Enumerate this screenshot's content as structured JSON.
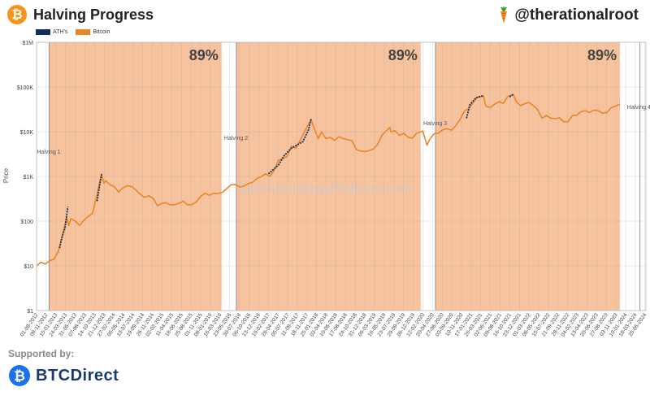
{
  "header": {
    "logo_symbol": "₿",
    "title": "Halving Progress",
    "handle": "@therationalroot",
    "handle_icon": "carrot-icon"
  },
  "footer": {
    "supported_by": "Supported by:",
    "sponsor": "BTCDirect",
    "sponsor_icon": "btcdirect-logo-icon"
  },
  "chart_data": {
    "type": "line",
    "title": "Halving Progress",
    "ylabel": "Price",
    "yscale": "log",
    "ylim": [
      1,
      1000000
    ],
    "xlim": [
      "2012-09-01",
      "2024-06-01"
    ],
    "grid": true,
    "watermark": "BitcoinStrategyPlatform.com",
    "colors": {
      "ath": "#0d2f5a",
      "bitcoin": "#e8862a",
      "band": "#f6b88d"
    },
    "legend": {
      "position": "top-left",
      "entries": [
        "ATH's",
        "Bitcoin"
      ]
    },
    "y_ticks": [
      {
        "value": 1,
        "label": "$1"
      },
      {
        "value": 10,
        "label": "$10"
      },
      {
        "value": 100,
        "label": "$100"
      },
      {
        "value": 1000,
        "label": "$1K"
      },
      {
        "value": 10000,
        "label": "$10K"
      },
      {
        "value": 100000,
        "label": "$100K"
      },
      {
        "value": 1000000,
        "label": "$1M"
      }
    ],
    "x_ticks": [
      "01-09-2012",
      "08-11-2012",
      "15-01-2013",
      "24-03-2013",
      "31-05-2013",
      "07-08-2013",
      "14-10-2013",
      "21-12-2013",
      "27-02-2014",
      "06-05-2014",
      "13-07-2014",
      "19-09-2014",
      "26-11-2014",
      "02-02-2015",
      "11-04-2015",
      "18-06-2015",
      "25-08-2015",
      "01-11-2015",
      "08-01-2016",
      "16-03-2016",
      "23-05-2016",
      "30-07-2016",
      "06-10-2016",
      "13-12-2016",
      "19-02-2017",
      "28-04-2017",
      "05-07-2017",
      "11-09-2017",
      "18-11-2017",
      "25-01-2018",
      "03-04-2018",
      "10-06-2018",
      "17-08-2018",
      "24-10-2018",
      "31-12-2018",
      "09-03-2019",
      "16-05-2019",
      "23-07-2019",
      "29-09-2019",
      "06-12-2019",
      "12-02-2020",
      "20-04-2020",
      "27-06-2020",
      "03-09-2020",
      "10-11-2020",
      "17-01-2021",
      "26-03-2021",
      "02-06-2021",
      "09-08-2021",
      "16-10-2021",
      "23-12-2021",
      "01-03-2022",
      "08-05-2022",
      "15-07-2022",
      "21-09-2022",
      "28-11-2022",
      "04-02-2023",
      "13-04-2023",
      "20-06-2023",
      "27-08-2023",
      "03-11-2023",
      "10-01-2024",
      "18-03-2024",
      "25-05-2024",
      "01-08-2024"
    ],
    "halvings": [
      {
        "label": "Halving 1",
        "date": "2012-11-28"
      },
      {
        "label": "Halving 2",
        "date": "2016-07-09"
      },
      {
        "label": "Halving 3",
        "date": "2020-05-11"
      },
      {
        "label": "Halving 4",
        "date": "2024-04-20"
      }
    ],
    "progress_bands": [
      {
        "start": "2012-11-28",
        "end": "2016-03-27",
        "label": "89%"
      },
      {
        "start": "2016-07-09",
        "end": "2020-01-28",
        "label": "89%"
      },
      {
        "start": "2020-05-11",
        "end": "2023-12-01",
        "label": "89%"
      }
    ],
    "series": [
      {
        "name": "Bitcoin",
        "points": [
          [
            "2012-09-01",
            10
          ],
          [
            "2012-10-01",
            12
          ],
          [
            "2012-11-01",
            11
          ],
          [
            "2012-12-01",
            13
          ],
          [
            "2013-01-01",
            14
          ],
          [
            "2013-02-01",
            21
          ],
          [
            "2013-03-01",
            46
          ],
          [
            "2013-04-01",
            120
          ],
          [
            "2013-04-15",
            80
          ],
          [
            "2013-05-01",
            115
          ],
          [
            "2013-06-01",
            100
          ],
          [
            "2013-07-01",
            80
          ],
          [
            "2013-08-01",
            105
          ],
          [
            "2013-09-01",
            128
          ],
          [
            "2013-10-01",
            150
          ],
          [
            "2013-11-01",
            400
          ],
          [
            "2013-12-01",
            1100
          ],
          [
            "2013-12-20",
            700
          ],
          [
            "2014-01-01",
            800
          ],
          [
            "2014-02-01",
            650
          ],
          [
            "2014-03-01",
            600
          ],
          [
            "2014-04-01",
            450
          ],
          [
            "2014-05-01",
            550
          ],
          [
            "2014-06-01",
            620
          ],
          [
            "2014-07-01",
            600
          ],
          [
            "2014-08-01",
            500
          ],
          [
            "2014-09-01",
            400
          ],
          [
            "2014-10-01",
            340
          ],
          [
            "2014-11-01",
            370
          ],
          [
            "2014-12-01",
            320
          ],
          [
            "2015-01-01",
            220
          ],
          [
            "2015-02-01",
            250
          ],
          [
            "2015-03-01",
            260
          ],
          [
            "2015-04-01",
            230
          ],
          [
            "2015-05-01",
            235
          ],
          [
            "2015-06-01",
            250
          ],
          [
            "2015-07-01",
            280
          ],
          [
            "2015-08-01",
            230
          ],
          [
            "2015-09-01",
            235
          ],
          [
            "2015-10-01",
            270
          ],
          [
            "2015-11-01",
            360
          ],
          [
            "2015-12-01",
            420
          ],
          [
            "2016-01-01",
            380
          ],
          [
            "2016-02-01",
            420
          ],
          [
            "2016-03-01",
            415
          ],
          [
            "2016-04-01",
            440
          ],
          [
            "2016-05-01",
            530
          ],
          [
            "2016-06-01",
            650
          ],
          [
            "2016-07-01",
            660
          ],
          [
            "2016-08-01",
            580
          ],
          [
            "2016-09-01",
            610
          ],
          [
            "2016-10-01",
            690
          ],
          [
            "2016-11-01",
            740
          ],
          [
            "2016-12-01",
            900
          ],
          [
            "2017-01-01",
            990
          ],
          [
            "2017-02-01",
            1150
          ],
          [
            "2017-03-01",
            1000
          ],
          [
            "2017-04-01",
            1350
          ],
          [
            "2017-05-01",
            2300
          ],
          [
            "2017-06-01",
            2500
          ],
          [
            "2017-07-01",
            2800
          ],
          [
            "2017-08-01",
            4700
          ],
          [
            "2017-09-01",
            4300
          ],
          [
            "2017-10-01",
            6400
          ],
          [
            "2017-11-01",
            10000
          ],
          [
            "2017-12-17",
            19000
          ],
          [
            "2018-01-01",
            13500
          ],
          [
            "2018-02-06",
            7000
          ],
          [
            "2018-03-01",
            10000
          ],
          [
            "2018-04-01",
            7000
          ],
          [
            "2018-05-01",
            7500
          ],
          [
            "2018-06-01",
            6400
          ],
          [
            "2018-07-01",
            7700
          ],
          [
            "2018-08-01",
            7000
          ],
          [
            "2018-09-01",
            6600
          ],
          [
            "2018-10-01",
            6300
          ],
          [
            "2018-11-01",
            4000
          ],
          [
            "2018-12-01",
            3700
          ],
          [
            "2019-01-01",
            3600
          ],
          [
            "2019-02-01",
            3800
          ],
          [
            "2019-03-01",
            4100
          ],
          [
            "2019-04-01",
            5300
          ],
          [
            "2019-05-01",
            8500
          ],
          [
            "2019-06-26",
            12500
          ],
          [
            "2019-07-01",
            10000
          ],
          [
            "2019-08-01",
            10500
          ],
          [
            "2019-09-01",
            8300
          ],
          [
            "2019-10-01",
            9200
          ],
          [
            "2019-11-01",
            7500
          ],
          [
            "2019-12-01",
            7200
          ],
          [
            "2020-01-01",
            9300
          ],
          [
            "2020-02-12",
            10300
          ],
          [
            "2020-03-12",
            5000
          ],
          [
            "2020-04-01",
            6800
          ],
          [
            "2020-05-01",
            9000
          ],
          [
            "2020-06-01",
            9300
          ],
          [
            "2020-07-01",
            11000
          ],
          [
            "2020-08-01",
            11700
          ],
          [
            "2020-09-01",
            10800
          ],
          [
            "2020-10-01",
            13700
          ],
          [
            "2020-11-01",
            19000
          ],
          [
            "2020-12-01",
            29000
          ],
          [
            "2021-01-01",
            33000
          ],
          [
            "2021-02-01",
            45000
          ],
          [
            "2021-03-01",
            58000
          ],
          [
            "2021-04-14",
            63000
          ],
          [
            "2021-05-01",
            37000
          ],
          [
            "2021-06-01",
            35000
          ],
          [
            "2021-07-01",
            41000
          ],
          [
            "2021-08-01",
            47000
          ],
          [
            "2021-09-01",
            43000
          ],
          [
            "2021-10-01",
            61000
          ],
          [
            "2021-11-10",
            68000
          ],
          [
            "2021-12-01",
            47000
          ],
          [
            "2022-01-01",
            38000
          ],
          [
            "2022-02-01",
            43000
          ],
          [
            "2022-03-01",
            45000
          ],
          [
            "2022-04-01",
            38000
          ],
          [
            "2022-05-01",
            31000
          ],
          [
            "2022-06-01",
            20000
          ],
          [
            "2022-07-01",
            23000
          ],
          [
            "2022-08-01",
            20000
          ],
          [
            "2022-09-01",
            19500
          ],
          [
            "2022-10-01",
            20500
          ],
          [
            "2022-11-01",
            16500
          ],
          [
            "2022-12-01",
            16800
          ],
          [
            "2023-01-01",
            23000
          ],
          [
            "2023-02-01",
            23500
          ],
          [
            "2023-03-01",
            28000
          ],
          [
            "2023-04-01",
            29500
          ],
          [
            "2023-05-01",
            27000
          ],
          [
            "2023-06-01",
            30500
          ],
          [
            "2023-07-01",
            29500
          ],
          [
            "2023-08-01",
            26000
          ],
          [
            "2023-09-01",
            27000
          ],
          [
            "2023-10-01",
            34500
          ],
          [
            "2023-11-01",
            37500
          ],
          [
            "2023-12-01",
            41000
          ]
        ]
      },
      {
        "name": "ATH's",
        "segments": [
          [
            [
              "2013-02-10",
              25
            ],
            [
              "2013-03-01",
              46
            ],
            [
              "2013-03-20",
              70
            ],
            [
              "2013-04-09",
              210
            ]
          ],
          [
            [
              "2013-11-01",
              280
            ],
            [
              "2013-11-18",
              600
            ],
            [
              "2013-12-04",
              1150
            ]
          ],
          [
            [
              "2017-02-20",
              1150
            ],
            [
              "2017-05-01",
              1800
            ],
            [
              "2017-06-10",
              2900
            ],
            [
              "2017-08-01",
              4300
            ],
            [
              "2017-10-20",
              6000
            ],
            [
              "2017-11-29",
              11000
            ],
            [
              "2017-12-17",
              19500
            ]
          ],
          [
            [
              "2020-12-16",
              20000
            ],
            [
              "2021-01-08",
              40000
            ],
            [
              "2021-02-21",
              58000
            ],
            [
              "2021-04-14",
              64000
            ]
          ],
          [
            [
              "2021-10-15",
              60000
            ],
            [
              "2021-11-10",
              69000
            ]
          ]
        ]
      }
    ]
  }
}
